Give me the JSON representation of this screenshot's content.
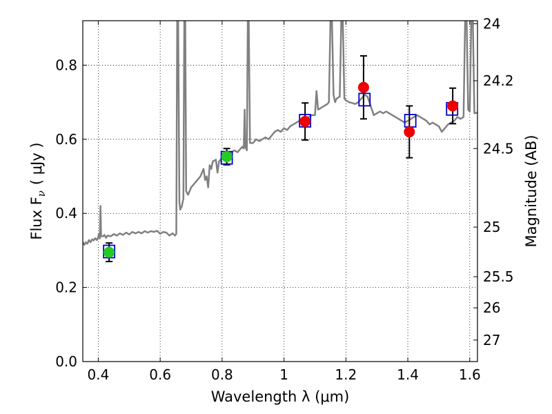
{
  "chart_data": {
    "type": "scatter",
    "xlabel": "Wavelength  λ (μm)",
    "ylabel": "Flux  F",
    "ylabel_sub": "ν",
    "ylabel_unit": "( μJy )",
    "y2label": "Magnitude (AB)",
    "xlim": [
      0.35,
      1.625
    ],
    "ylim": [
      0.0,
      0.92
    ],
    "grid": true,
    "x_ticks": [
      0.4,
      0.6,
      0.8,
      1.0,
      1.2,
      1.4,
      1.6
    ],
    "x_tick_labels": [
      "0.4",
      "0.6",
      "0.8",
      "1",
      "1.2",
      "1.4",
      "1.6"
    ],
    "y_ticks": [
      0.0,
      0.2,
      0.4,
      0.6,
      0.8
    ],
    "y_tick_labels": [
      "0.0",
      "0.2",
      "0.4",
      "0.6",
      "0.8"
    ],
    "y2_ticks": [
      {
        "flux": 0.912,
        "label": "24"
      },
      {
        "flux": 0.758,
        "label": "24.2"
      },
      {
        "flux": 0.575,
        "label": "24.5"
      },
      {
        "flux": 0.363,
        "label": "25"
      },
      {
        "flux": 0.229,
        "label": "25.5"
      },
      {
        "flux": 0.145,
        "label": "26"
      },
      {
        "flux": 0.058,
        "label": "27"
      }
    ],
    "model_spectrum": {
      "color": "#808080",
      "points": [
        [
          0.35,
          0.323
        ],
        [
          0.355,
          0.315
        ],
        [
          0.36,
          0.322
        ],
        [
          0.365,
          0.318
        ],
        [
          0.37,
          0.328
        ],
        [
          0.375,
          0.322
        ],
        [
          0.38,
          0.33
        ],
        [
          0.385,
          0.327
        ],
        [
          0.39,
          0.333
        ],
        [
          0.395,
          0.328
        ],
        [
          0.4,
          0.336
        ],
        [
          0.402,
          0.345
        ],
        [
          0.405,
          0.332
        ],
        [
          0.407,
          0.42
        ],
        [
          0.409,
          0.338
        ],
        [
          0.415,
          0.338
        ],
        [
          0.42,
          0.342
        ],
        [
          0.425,
          0.334
        ],
        [
          0.43,
          0.34
        ],
        [
          0.44,
          0.338
        ],
        [
          0.45,
          0.344
        ],
        [
          0.46,
          0.34
        ],
        [
          0.47,
          0.346
        ],
        [
          0.48,
          0.342
        ],
        [
          0.49,
          0.348
        ],
        [
          0.5,
          0.343
        ],
        [
          0.51,
          0.35
        ],
        [
          0.52,
          0.346
        ],
        [
          0.53,
          0.35
        ],
        [
          0.54,
          0.346
        ],
        [
          0.55,
          0.352
        ],
        [
          0.56,
          0.348
        ],
        [
          0.57,
          0.352
        ],
        [
          0.58,
          0.35
        ],
        [
          0.59,
          0.353
        ],
        [
          0.6,
          0.345
        ],
        [
          0.61,
          0.35
        ],
        [
          0.62,
          0.348
        ],
        [
          0.63,
          0.34
        ],
        [
          0.64,
          0.346
        ],
        [
          0.648,
          0.34
        ],
        [
          0.652,
          0.345
        ],
        [
          0.655,
          0.92
        ],
        [
          0.658,
          0.92
        ],
        [
          0.662,
          0.43
        ],
        [
          0.665,
          0.41
        ],
        [
          0.67,
          0.42
        ],
        [
          0.675,
          0.44
        ],
        [
          0.678,
          0.92
        ],
        [
          0.681,
          0.92
        ],
        [
          0.684,
          0.46
        ],
        [
          0.69,
          0.45
        ],
        [
          0.7,
          0.47
        ],
        [
          0.71,
          0.48
        ],
        [
          0.72,
          0.49
        ],
        [
          0.73,
          0.5
        ],
        [
          0.735,
          0.51
        ],
        [
          0.74,
          0.52
        ],
        [
          0.745,
          0.49
        ],
        [
          0.75,
          0.5
        ],
        [
          0.755,
          0.47
        ],
        [
          0.76,
          0.53
        ],
        [
          0.765,
          0.52
        ],
        [
          0.77,
          0.54
        ],
        [
          0.78,
          0.545
        ],
        [
          0.785,
          0.51
        ],
        [
          0.79,
          0.54
        ],
        [
          0.8,
          0.55
        ],
        [
          0.81,
          0.555
        ],
        [
          0.82,
          0.56
        ],
        [
          0.83,
          0.565
        ],
        [
          0.84,
          0.57
        ],
        [
          0.85,
          0.565
        ],
        [
          0.86,
          0.575
        ],
        [
          0.865,
          0.58
        ],
        [
          0.87,
          0.575
        ],
        [
          0.873,
          0.68
        ],
        [
          0.875,
          0.58
        ],
        [
          0.88,
          0.57
        ],
        [
          0.883,
          0.92
        ],
        [
          0.886,
          0.92
        ],
        [
          0.89,
          0.59
        ],
        [
          0.9,
          0.59
        ],
        [
          0.91,
          0.6
        ],
        [
          0.92,
          0.595
        ],
        [
          0.93,
          0.6
        ],
        [
          0.94,
          0.605
        ],
        [
          0.95,
          0.6
        ],
        [
          0.96,
          0.61
        ],
        [
          0.97,
          0.62
        ],
        [
          0.98,
          0.625
        ],
        [
          0.99,
          0.62
        ],
        [
          1.0,
          0.63
        ],
        [
          1.01,
          0.625
        ],
        [
          1.02,
          0.635
        ],
        [
          1.03,
          0.64
        ],
        [
          1.04,
          0.645
        ],
        [
          1.05,
          0.65
        ],
        [
          1.06,
          0.652
        ],
        [
          1.07,
          0.658
        ],
        [
          1.08,
          0.66
        ],
        [
          1.09,
          0.665
        ],
        [
          1.1,
          0.665
        ],
        [
          1.105,
          0.73
        ],
        [
          1.11,
          0.68
        ],
        [
          1.12,
          0.685
        ],
        [
          1.13,
          0.69
        ],
        [
          1.14,
          0.695
        ],
        [
          1.145,
          0.7
        ],
        [
          1.15,
          0.92
        ],
        [
          1.155,
          0.92
        ],
        [
          1.16,
          0.72
        ],
        [
          1.165,
          0.7
        ],
        [
          1.17,
          0.71
        ],
        [
          1.18,
          0.715
        ],
        [
          1.185,
          0.92
        ],
        [
          1.19,
          0.92
        ],
        [
          1.195,
          0.71
        ],
        [
          1.2,
          0.705
        ],
        [
          1.21,
          0.7
        ],
        [
          1.22,
          0.698
        ],
        [
          1.23,
          0.695
        ],
        [
          1.24,
          0.7
        ],
        [
          1.25,
          0.71
        ],
        [
          1.26,
          0.72
        ],
        [
          1.27,
          0.715
        ],
        [
          1.28,
          0.69
        ],
        [
          1.29,
          0.665
        ],
        [
          1.3,
          0.67
        ],
        [
          1.31,
          0.675
        ],
        [
          1.32,
          0.67
        ],
        [
          1.33,
          0.675
        ],
        [
          1.34,
          0.67
        ],
        [
          1.35,
          0.665
        ],
        [
          1.36,
          0.66
        ],
        [
          1.37,
          0.655
        ],
        [
          1.38,
          0.65
        ],
        [
          1.39,
          0.645
        ],
        [
          1.4,
          0.65
        ],
        [
          1.41,
          0.655
        ],
        [
          1.42,
          0.66
        ],
        [
          1.43,
          0.665
        ],
        [
          1.44,
          0.66
        ],
        [
          1.45,
          0.655
        ],
        [
          1.46,
          0.65
        ],
        [
          1.47,
          0.64
        ],
        [
          1.48,
          0.645
        ],
        [
          1.49,
          0.64
        ],
        [
          1.5,
          0.635
        ],
        [
          1.51,
          0.62
        ],
        [
          1.52,
          0.63
        ],
        [
          1.53,
          0.64
        ],
        [
          1.54,
          0.645
        ],
        [
          1.55,
          0.65
        ],
        [
          1.56,
          0.66
        ],
        [
          1.57,
          0.655
        ],
        [
          1.58,
          0.66
        ],
        [
          1.585,
          0.92
        ],
        [
          1.59,
          0.92
        ],
        [
          1.595,
          0.68
        ],
        [
          1.6,
          0.675
        ],
        [
          1.605,
          0.92
        ],
        [
          1.61,
          0.92
        ],
        [
          1.615,
          0.67
        ],
        [
          1.625,
          0.672
        ]
      ]
    },
    "model_boxes": {
      "color": "#0000cc",
      "points": [
        {
          "x": 0.435,
          "y": 0.297
        },
        {
          "x": 0.815,
          "y": 0.55
        },
        {
          "x": 1.068,
          "y": 0.65
        },
        {
          "x": 1.26,
          "y": 0.707
        },
        {
          "x": 1.408,
          "y": 0.65
        },
        {
          "x": 1.543,
          "y": 0.682
        }
      ]
    },
    "observed": [
      {
        "x": 0.435,
        "y": 0.295,
        "err": 0.025,
        "color": "#22cc22"
      },
      {
        "x": 0.815,
        "y": 0.553,
        "err": 0.022,
        "color": "#22cc22"
      },
      {
        "x": 1.068,
        "y": 0.648,
        "err": 0.05,
        "color": "#ee0000"
      },
      {
        "x": 1.257,
        "y": 0.74,
        "err": 0.085,
        "color": "#ee0000"
      },
      {
        "x": 1.405,
        "y": 0.62,
        "err": 0.07,
        "color": "#ee0000"
      },
      {
        "x": 1.545,
        "y": 0.69,
        "err": 0.048,
        "color": "#ee0000"
      }
    ]
  }
}
